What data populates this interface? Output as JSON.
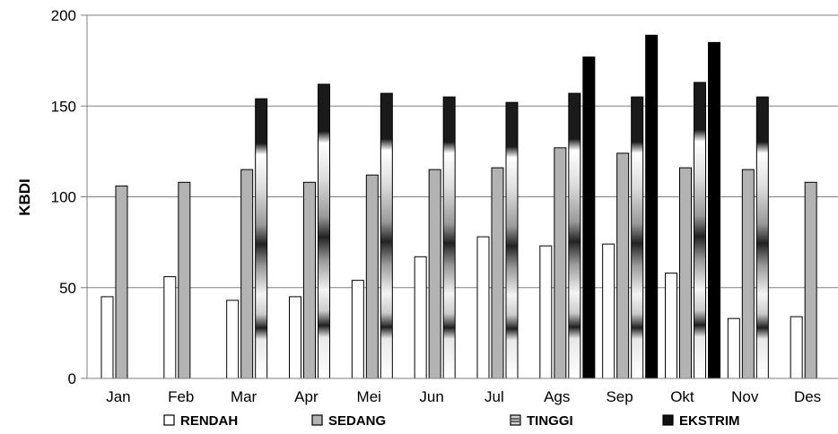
{
  "chart_data": {
    "type": "bar",
    "ylabel": "KBDI",
    "xlabel": "",
    "ylim": [
      0,
      200
    ],
    "yticks": [
      0,
      50,
      100,
      150,
      200
    ],
    "grid": true,
    "legend_position": "bottom",
    "categories": [
      "Jan",
      "Feb",
      "Mar",
      "Apr",
      "Mei",
      "Jun",
      "Jul",
      "Ags",
      "Sep",
      "Okt",
      "Nov",
      "Des"
    ],
    "series": [
      {
        "name": "RENDAH",
        "color": "#ffffff",
        "values": [
          45,
          56,
          43,
          45,
          54,
          67,
          78,
          73,
          74,
          58,
          33,
          34
        ]
      },
      {
        "name": "SEDANG",
        "color": "#b3b3b3",
        "values": [
          106,
          108,
          115,
          108,
          112,
          115,
          116,
          127,
          124,
          116,
          115,
          108
        ]
      },
      {
        "name": "TINGGI",
        "color": "#808080",
        "values": [
          null,
          null,
          154,
          162,
          157,
          155,
          152,
          157,
          155,
          163,
          155,
          null
        ]
      },
      {
        "name": "EKSTRIM",
        "color": "#000000",
        "values": [
          null,
          null,
          null,
          null,
          null,
          null,
          null,
          177,
          189,
          185,
          null,
          null
        ]
      }
    ]
  }
}
